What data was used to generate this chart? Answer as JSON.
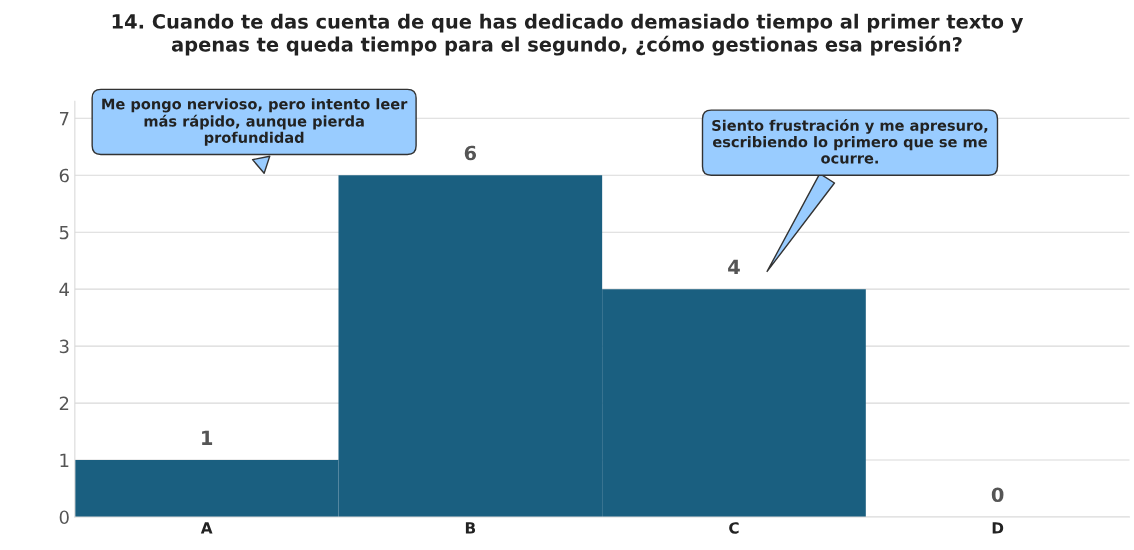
{
  "chart_data": {
    "type": "bar",
    "title": "14. Cuando te das cuenta de que has dedicado demasiado tiempo al primer texto y\napenas te queda tiempo para el segundo, ¿cómo gestionas esa presión?",
    "categories": [
      "A",
      "B",
      "C",
      "D"
    ],
    "values": [
      1,
      6,
      4,
      0
    ],
    "color": "#1a5f80",
    "ylim": [
      0,
      7.3
    ],
    "yticks": [
      0,
      1,
      2,
      3,
      4,
      5,
      6,
      7
    ],
    "grid": "y",
    "data_labels": true,
    "annotations": [
      "Me pongo nervioso, pero intento leer\nmás rápido, aunque pierda\nprofundidad",
      "Siento frustración y me apresuro,\nescribiendo lo primero que se me\nocurre."
    ]
  }
}
